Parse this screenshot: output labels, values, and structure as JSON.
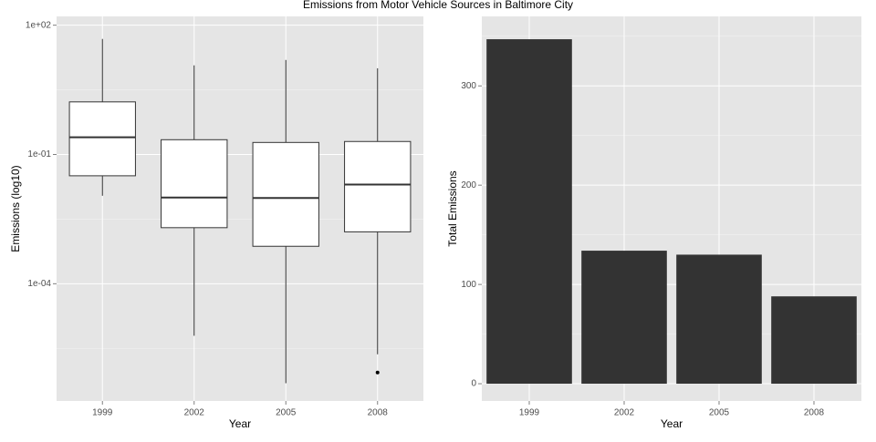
{
  "title": "Emissions from Motor Vehicle Sources in Baltimore City",
  "chart_data": [
    {
      "type": "box",
      "x_label": "Year",
      "y_label": "Emissions (log10)",
      "log_scale": true,
      "grid": true,
      "categories": [
        "1999",
        "2002",
        "2005",
        "2008"
      ],
      "whisker_low": [
        0.011,
        6.2e-06,
        4.9e-07,
        2.3e-06
      ],
      "q1": [
        0.032,
        0.002,
        0.00074,
        0.0016
      ],
      "median": [
        0.25,
        0.01,
        0.0098,
        0.02
      ],
      "q3": [
        1.66,
        0.22,
        0.19,
        0.2
      ],
      "whisker_high": [
        48,
        11.7,
        15.6,
        10
      ],
      "outliers": [
        [],
        [],
        [],
        [
          8.7e-07
        ]
      ],
      "color": "#ffffff",
      "ylim": [
        1.9e-07,
        160
      ],
      "yticks": [
        {
          "value": 100,
          "label": "1e+02"
        },
        {
          "value": 0.1,
          "label": "1e-01"
        },
        {
          "value": 0.0001,
          "label": "1e-04"
        }
      ]
    },
    {
      "type": "bar",
      "x_label": "Year",
      "y_label": "Total Emissions",
      "grid": true,
      "categories": [
        "1999",
        "2002",
        "2005",
        "2008"
      ],
      "values": [
        347,
        134,
        130,
        88
      ],
      "color": "#333333",
      "ylim": [
        -17.4,
        370
      ],
      "yticks": [
        0,
        100,
        200,
        300
      ]
    }
  ]
}
